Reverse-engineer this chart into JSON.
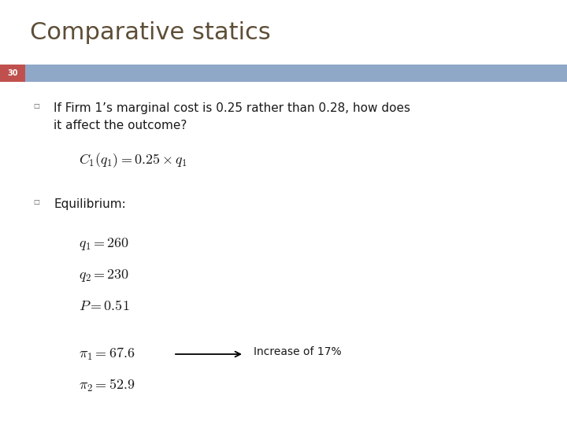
{
  "title": "Comparative statics",
  "title_color": "#5d4e37",
  "title_fontsize": 22,
  "background_color": "#ffffff",
  "slide_number": "30",
  "slide_number_bg": "#c0504d",
  "bar_color": "#8fa8c8",
  "bullet1_text": "If Firm 1’s marginal cost is 0.25 rather than 0.28, how does\nit affect the outcome?",
  "formula1": "$C_1(q_1) = 0.25\\times q_1$",
  "bullet2_text": "Equilibrium:",
  "eq1": "$q_1 = 260$",
  "eq2": "$q_2 = 230$",
  "eq3": "$P = 0.51$",
  "eq4": "$\\pi_1 = 67.6$",
  "eq5": "$\\pi_2 = 52.9$",
  "arrow_label": "Increase of 17%",
  "bullet_color": "#555555",
  "text_color": "#1a1a1a",
  "math_color": "#1a1a1a"
}
